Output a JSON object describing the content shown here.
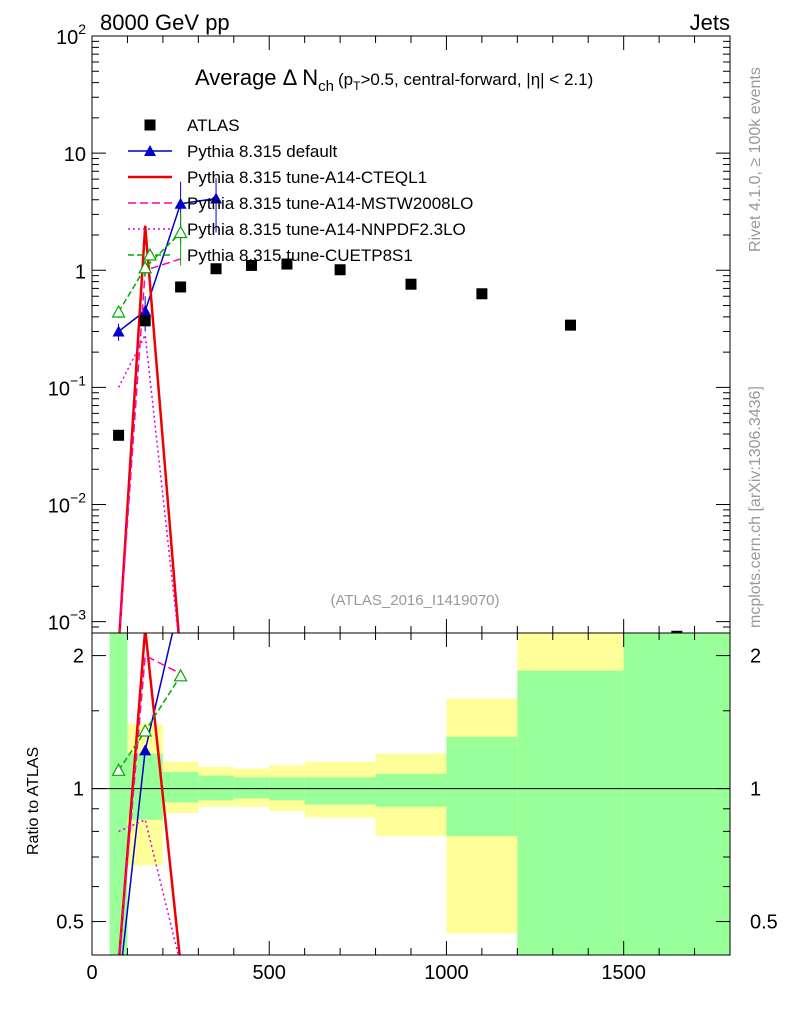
{
  "header": {
    "left": "8000 GeV pp",
    "right": "Jets"
  },
  "side_labels": {
    "rivet": "Rivet 4.1.0, ≥ 100k events",
    "mcplots": "mcplots.cern.ch [arXiv:1306.3436]"
  },
  "chart_data": {
    "type": "line",
    "title": "Average Δ N",
    "title_sub": "ch",
    "title_cond": "(p",
    "title_cond_sub": "T",
    "title_cond_rest": ">0.5, central-forward, |η| < 2.1)",
    "analysis_tag": "(ATLAS_2016_I1419070)",
    "xlabel": "",
    "ylabel_ratio": "Ratio to ATLAS",
    "xlim": [
      0,
      1800
    ],
    "ylim": [
      0.0008,
      100
    ],
    "ratio_ylim": [
      0.42,
      2.25
    ],
    "x_ticks": [
      "0",
      "500",
      "1000",
      "1500"
    ],
    "x_tick_values": [
      0,
      500,
      1000,
      1500
    ],
    "y_ticks": [
      {
        "base": "10",
        "exp": "2",
        "value": 100
      },
      {
        "base": "10",
        "exp": "",
        "value": 10
      },
      {
        "base": "1",
        "exp": "",
        "value": 1
      },
      {
        "base": "10",
        "exp": "−1",
        "value": 0.1
      },
      {
        "base": "10",
        "exp": "−2",
        "value": 0.01
      },
      {
        "base": "10",
        "exp": "−3",
        "value": 0.001
      }
    ],
    "ratio_ticks": [
      "2",
      "1",
      "0.5"
    ],
    "ratio_tick_values": [
      2,
      1,
      0.5
    ],
    "data": {
      "name": "ATLAS",
      "x": [
        75,
        150,
        250,
        350,
        450,
        550,
        700,
        900,
        1100,
        1350,
        1650
      ],
      "y": [
        0.039,
        0.37,
        0.72,
        1.03,
        1.1,
        1.13,
        1.01,
        0.76,
        0.63,
        0.34,
        0.00075
      ]
    },
    "bands": [
      {
        "x_low": 50,
        "x_high": 100,
        "inner": [
          0.4,
          2.25
        ],
        "outer": [
          0.4,
          2.25
        ]
      },
      {
        "x_low": 100,
        "x_high": 200,
        "inner": [
          0.85,
          1.2
        ],
        "outer": [
          0.67,
          1.4
        ]
      },
      {
        "x_low": 200,
        "x_high": 300,
        "inner": [
          0.93,
          1.09
        ],
        "outer": [
          0.88,
          1.15
        ]
      },
      {
        "x_low": 300,
        "x_high": 400,
        "inner": [
          0.94,
          1.07
        ],
        "outer": [
          0.91,
          1.12
        ]
      },
      {
        "x_low": 400,
        "x_high": 500,
        "inner": [
          0.95,
          1.06
        ],
        "outer": [
          0.91,
          1.11
        ]
      },
      {
        "x_low": 500,
        "x_high": 600,
        "inner": [
          0.94,
          1.06
        ],
        "outer": [
          0.89,
          1.13
        ]
      },
      {
        "x_low": 600,
        "x_high": 800,
        "inner": [
          0.92,
          1.06
        ],
        "outer": [
          0.86,
          1.15
        ]
      },
      {
        "x_low": 800,
        "x_high": 1000,
        "inner": [
          0.91,
          1.08
        ],
        "outer": [
          0.78,
          1.2
        ]
      },
      {
        "x_low": 1000,
        "x_high": 1200,
        "inner": [
          0.78,
          1.31
        ],
        "outer": [
          0.47,
          1.6
        ]
      },
      {
        "x_low": 1200,
        "x_high": 1500,
        "inner": [
          0.4,
          1.85
        ],
        "outer": [
          0.4,
          2.25
        ]
      },
      {
        "x_low": 1500,
        "x_high": 1800,
        "inner": [
          0.4,
          2.25
        ],
        "outer": [
          0.4,
          2.25
        ]
      }
    ],
    "series": [
      {
        "name": "Pythia 8.315 default",
        "color": "#0000cc",
        "dash": "solid",
        "marker": "triangle",
        "x": [
          75,
          150,
          250,
          350
        ],
        "y": [
          0.3,
          0.45,
          3.7,
          4.1
        ],
        "yerr": [
          0.05,
          0.15,
          2.0,
          2.0
        ],
        "rx": [
          75,
          150,
          250
        ],
        "ry": [
          0.35,
          1.22,
          2.7
        ]
      },
      {
        "name": "Pythia 8.315 tune-A14-CTEQL1",
        "color": "#ee0000",
        "dash": "solid",
        "marker": "none",
        "x": [
          75,
          150,
          250
        ],
        "y": [
          0.0006,
          2.4,
          0.0005
        ],
        "yerr": [
          0,
          0,
          0
        ],
        "rx": [
          75,
          150,
          250
        ],
        "ry": [
          0.4,
          2.3,
          0.4
        ]
      },
      {
        "name": "Pythia 8.315 tune-A14-MSTW2008LO",
        "color": "#ff00aa",
        "dash": "8,4",
        "marker": "none",
        "x": [
          75,
          150,
          250
        ],
        "y": [
          0.0006,
          1.0,
          1.25
        ],
        "yerr": [
          0,
          0,
          0
        ],
        "rx": [
          75,
          150,
          250
        ],
        "ry": [
          0.4,
          2.0,
          1.82
        ]
      },
      {
        "name": "Pythia 8.315 tune-A14-NNPDF2.3LO",
        "color": "#dd00dd",
        "dash": "2,3",
        "marker": "none",
        "x": [
          75,
          150,
          250
        ],
        "y": [
          0.1,
          0.28,
          0.0005
        ],
        "yerr": [
          0,
          0,
          0
        ],
        "rx": [
          75,
          150,
          250
        ],
        "ry": [
          0.8,
          0.85,
          0.4
        ]
      },
      {
        "name": "Pythia 8.315 tune-CUETP8S1",
        "color": "#00aa00",
        "dash": "6,3",
        "marker": "open-triangle",
        "x": [
          75,
          150,
          250
        ],
        "y": [
          0.44,
          1.05,
          2.1
        ],
        "yerr": [
          0.05,
          0.15,
          1.0
        ],
        "rx": [
          75,
          150,
          250
        ],
        "ry": [
          1.1,
          1.35,
          1.8
        ]
      }
    ]
  }
}
